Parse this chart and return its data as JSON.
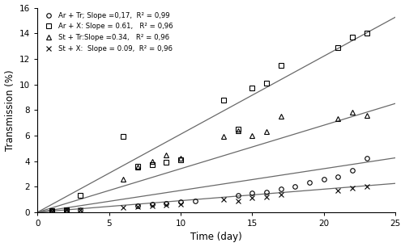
{
  "title": "",
  "xlabel": "Time (day)",
  "ylabel": "Transmission (%)",
  "xlim": [
    0,
    25
  ],
  "ylim": [
    0,
    16
  ],
  "xticks": [
    0,
    5,
    10,
    15,
    20,
    25
  ],
  "yticks": [
    0,
    2,
    4,
    6,
    8,
    10,
    12,
    14,
    16
  ],
  "series": [
    {
      "label": "Ar + Tr; Slope =0,17,  R² = 0,99",
      "marker": "o",
      "slope": 0.17,
      "intercept": 0.0,
      "color": "black",
      "markersize": 4,
      "fillstyle": "none",
      "x": [
        1,
        2,
        3,
        7,
        8,
        9,
        10,
        11,
        14,
        15,
        16,
        17,
        18,
        19,
        20,
        21,
        22,
        23
      ],
      "y": [
        0.1,
        0.15,
        0.2,
        0.5,
        0.6,
        0.7,
        0.8,
        0.9,
        1.3,
        1.5,
        1.6,
        1.8,
        2.0,
        2.3,
        2.6,
        2.8,
        3.3,
        4.2
      ]
    },
    {
      "label": "Ar + X: Slope = 0.61,   R² = 0,96",
      "marker": "s",
      "slope": 0.61,
      "intercept": 0.0,
      "color": "black",
      "markersize": 4,
      "fillstyle": "none",
      "x": [
        1,
        2,
        3,
        6,
        7,
        8,
        9,
        10,
        13,
        14,
        15,
        16,
        17,
        21,
        22,
        23
      ],
      "y": [
        0.1,
        0.2,
        1.3,
        5.9,
        3.6,
        3.7,
        3.9,
        4.1,
        8.8,
        6.5,
        9.7,
        10.1,
        11.5,
        12.9,
        13.7,
        14.0
      ]
    },
    {
      "label": "St + Tr:Slope =0.34,   R² = 0,96",
      "marker": "^",
      "slope": 0.34,
      "intercept": 0.0,
      "color": "black",
      "markersize": 4,
      "fillstyle": "none",
      "x": [
        1,
        2,
        6,
        7,
        8,
        9,
        10,
        13,
        14,
        15,
        16,
        17,
        21,
        22,
        23
      ],
      "y": [
        0.1,
        0.2,
        2.6,
        3.5,
        4.0,
        4.5,
        4.2,
        5.9,
        6.4,
        6.0,
        6.3,
        7.5,
        7.3,
        7.8,
        7.6
      ]
    },
    {
      "label": "St + X: Slope = 0.09,   R² = 0,96",
      "marker": "x",
      "slope": 0.09,
      "intercept": 0.0,
      "color": "black",
      "markersize": 4,
      "fillstyle": "none",
      "x": [
        1,
        2,
        3,
        6,
        7,
        8,
        9,
        10,
        13,
        14,
        15,
        16,
        17,
        21,
        22,
        23
      ],
      "y": [
        0.05,
        0.15,
        0.2,
        0.4,
        0.45,
        0.5,
        0.55,
        0.6,
        1.0,
        0.9,
        1.1,
        1.2,
        1.35,
        1.7,
        1.9,
        2.0
      ]
    }
  ],
  "legend_labels": [
    "Ar + Tr; Slope =0,17,  R² = 0,99",
    "Ar + X: Slope = 0.61,   R² = 0,96",
    "St + Tr:Slope =0.34,   R² = 0,96",
    "St + X:  Slope = 0.09,  R² = 0,96"
  ],
  "figsize": [
    5.0,
    3.06
  ],
  "dpi": 100
}
